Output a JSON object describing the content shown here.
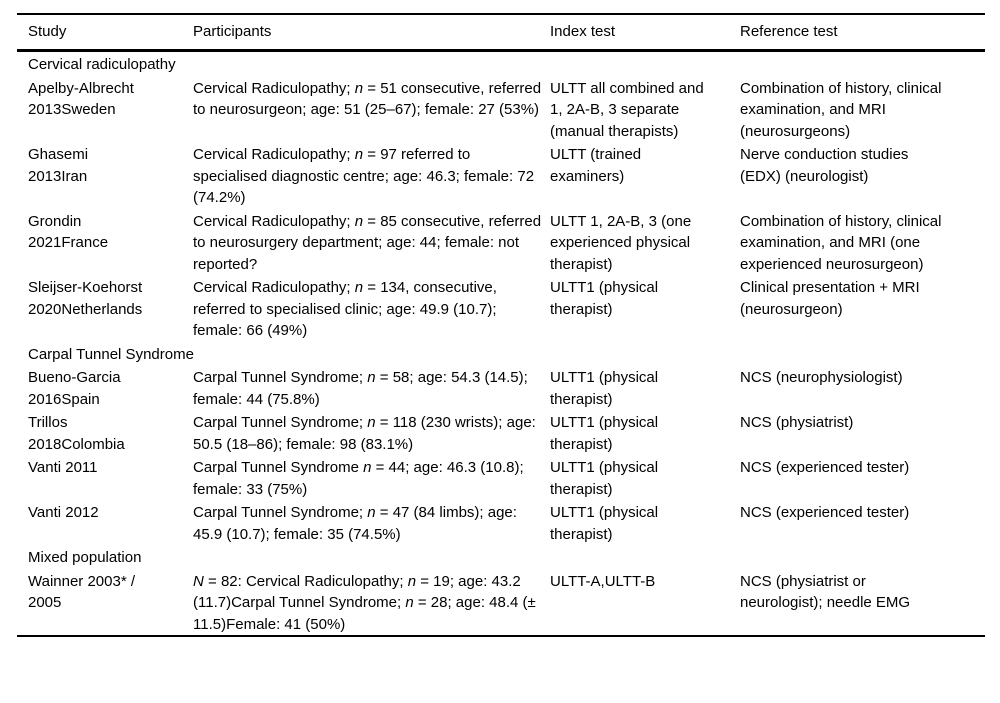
{
  "page": {
    "background": "#ffffff",
    "rule_color": "#000000"
  },
  "table": {
    "columns": [
      {
        "label": "Study"
      },
      {
        "label": "Participants"
      },
      {
        "label": "Index test"
      },
      {
        "label": "Reference test"
      }
    ],
    "rows": [
      {
        "type": "section",
        "label": "Cervical radiculopathy"
      },
      {
        "type": "study",
        "study": "Apelby-Albrecht 2013Sweden",
        "participants": [
          {
            "t": "Cervical Radiculopathy; "
          },
          {
            "t": "n",
            "i": true
          },
          {
            "t": " = 51 consecutive, referred to neurosurgeon; age: 51 (25–67); female: 27 (53%)"
          }
        ],
        "index_test": "ULTT all combined and 1, 2A-B, 3 separate (manual therapists)",
        "reference_test": "Combination of history, clinical examination, and MRI (neurosurgeons)"
      },
      {
        "type": "study",
        "study": "Ghasemi 2013Iran",
        "participants": [
          {
            "t": "Cervical Radiculopathy; "
          },
          {
            "t": "n",
            "i": true
          },
          {
            "t": " = 97 referred to specialised diagnostic centre; age: 46.3; female: 72 (74.2%)"
          }
        ],
        "index_test": "ULTT (trained examiners)",
        "reference_test": "Nerve conduction studies (EDX) (neurologist)"
      },
      {
        "type": "study",
        "study": "Grondin 2021France",
        "participants": [
          {
            "t": "Cervical Radiculopathy; "
          },
          {
            "t": "n",
            "i": true
          },
          {
            "t": " = 85 consecutive, referred to neurosurgery department; age: 44; female: not reported?"
          }
        ],
        "index_test": "ULTT 1, 2A-B, 3 (one experienced physical therapist)",
        "reference_test": "Combination of history, clinical examination, and MRI (one experienced neurosurgeon)"
      },
      {
        "type": "study",
        "study": "Sleijser-Koehorst 2020Netherlands",
        "participants": [
          {
            "t": "Cervical Radiculopathy; "
          },
          {
            "t": "n",
            "i": true
          },
          {
            "t": " = 134, consecutive, referred to specialised clinic; age: 49.9 (10.7); female: 66 (49%)"
          }
        ],
        "index_test": "ULTT1 (physical therapist)",
        "reference_test": "Clinical presentation + MRI (neurosurgeon)"
      },
      {
        "type": "section",
        "label": "Carpal Tunnel Syndrome"
      },
      {
        "type": "study",
        "study": "Bueno-Garcia 2016Spain",
        "participants": [
          {
            "t": "Carpal Tunnel Syndrome; "
          },
          {
            "t": "n",
            "i": true
          },
          {
            "t": " = 58; age: 54.3 (14.5); female: 44 (75.8%)"
          }
        ],
        "index_test": "ULTT1 (physical therapist)",
        "reference_test": "NCS (neurophysiologist)"
      },
      {
        "type": "study",
        "study": "Trillos 2018Colombia",
        "participants": [
          {
            "t": "Carpal Tunnel Syndrome; "
          },
          {
            "t": "n",
            "i": true
          },
          {
            "t": " = 118 (230 wrists); age: 50.5 (18–86); female: 98 (83.1%)"
          }
        ],
        "index_test": "ULTT1 (physical therapist)",
        "reference_test": "NCS (physiatrist)"
      },
      {
        "type": "study",
        "study": "Vanti 2011",
        "participants": [
          {
            "t": "Carpal Tunnel Syndrome "
          },
          {
            "t": "n",
            "i": true
          },
          {
            "t": " = 44; age: 46.3 (10.8); female: 33 (75%)"
          }
        ],
        "index_test": "ULTT1 (physical therapist)",
        "reference_test": "NCS (experienced tester)"
      },
      {
        "type": "study",
        "study": "Vanti 2012",
        "participants": [
          {
            "t": "Carpal Tunnel Syndrome; "
          },
          {
            "t": "n",
            "i": true
          },
          {
            "t": " = 47 (84 limbs); age: 45.9 (10.7); female: 35 (74.5%)"
          }
        ],
        "index_test": "ULTT1 (physical therapist)",
        "reference_test": "NCS (experienced tester)"
      },
      {
        "type": "section",
        "label": "Mixed population"
      },
      {
        "type": "study",
        "study": "Wainner 2003* / 2005",
        "participants": [
          {
            "t": "N",
            "i": true
          },
          {
            "t": " = 82: Cervical Radiculopathy; "
          },
          {
            "t": "n",
            "i": true
          },
          {
            "t": " = 19; age: 43.2 (11.7)Carpal Tunnel Syndrome; "
          },
          {
            "t": "n",
            "i": true
          },
          {
            "t": " = 28; age: 48.4 (± 11.5)Female: 41 (50%)"
          }
        ],
        "index_test": "ULTT-A,ULTT-B",
        "reference_test": "NCS (physiatrist or neurologist); needle EMG"
      }
    ]
  }
}
